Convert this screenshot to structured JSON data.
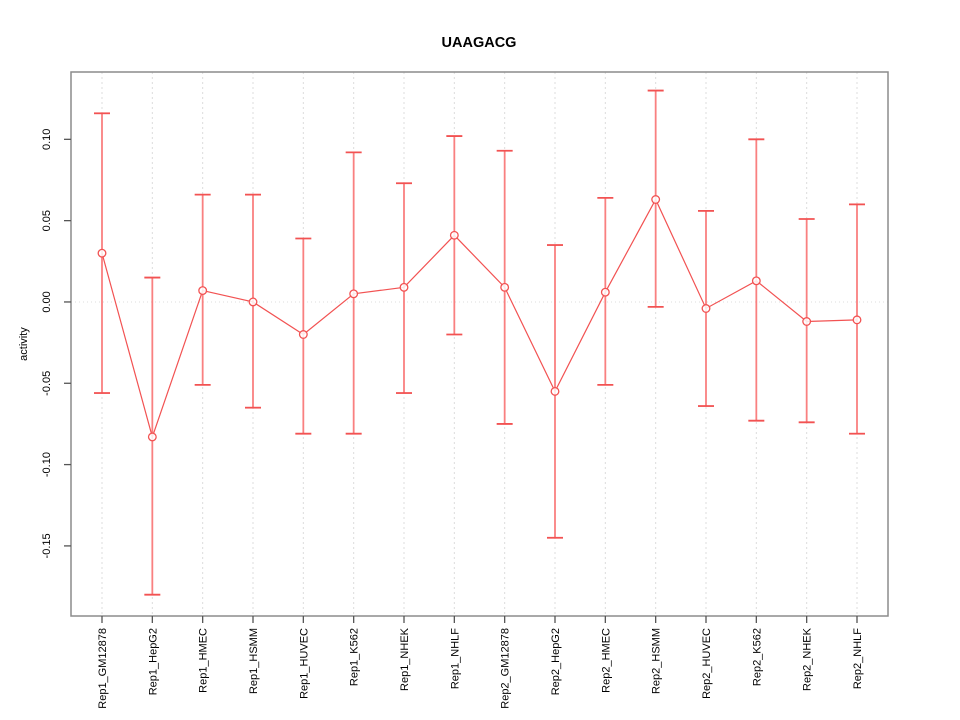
{
  "chart_data": {
    "type": "line",
    "title": "UAAGACG",
    "xlabel": "",
    "ylabel": "activity",
    "legend": "none",
    "grid": {
      "vertical_per_category": true,
      "zero_line_dotted": true,
      "horizontal_other": false
    },
    "categories": [
      "Rep1_GM12878",
      "Rep1_HepG2",
      "Rep1_HMEC",
      "Rep1_HSMM",
      "Rep1_HUVEC",
      "Rep1_K562",
      "Rep1_NHEK",
      "Rep1_NHLF",
      "Rep2_GM12878",
      "Rep2_HepG2",
      "Rep2_HMEC",
      "Rep2_HSMM",
      "Rep2_HUVEC",
      "Rep2_K562",
      "Rep2_NHEK",
      "Rep2_NHLF"
    ],
    "series": [
      {
        "name": "activity",
        "marker": "open-circle",
        "values": [
          0.03,
          -0.083,
          0.007,
          0.0,
          -0.02,
          0.005,
          0.009,
          0.041,
          0.009,
          -0.055,
          0.006,
          0.063,
          -0.004,
          0.013,
          -0.012,
          -0.011
        ],
        "error_low": [
          -0.056,
          -0.18,
          -0.051,
          -0.065,
          -0.081,
          -0.081,
          -0.056,
          -0.02,
          -0.075,
          -0.145,
          -0.051,
          -0.003,
          -0.064,
          -0.073,
          -0.074,
          -0.081
        ],
        "error_high": [
          0.116,
          0.015,
          0.066,
          0.066,
          0.039,
          0.092,
          0.073,
          0.102,
          0.093,
          0.035,
          0.064,
          0.13,
          0.056,
          0.1,
          0.051,
          0.06
        ]
      }
    ],
    "yticks": [
      0.1,
      0.05,
      0.0,
      -0.05,
      -0.1,
      -0.15
    ],
    "ytick_labels": [
      "0.10",
      "0.05",
      "0.00",
      "-0.05",
      "-0.10",
      "-0.15"
    ],
    "ylim": [
      -0.1931,
      0.1414
    ],
    "colors": {
      "series": "#f25252",
      "series_soft": "#f98080",
      "grid": "#dcdcdc",
      "box": "#8c8c8c",
      "tick": "#555555",
      "label": "#000000",
      "background": "#ffffff"
    }
  }
}
